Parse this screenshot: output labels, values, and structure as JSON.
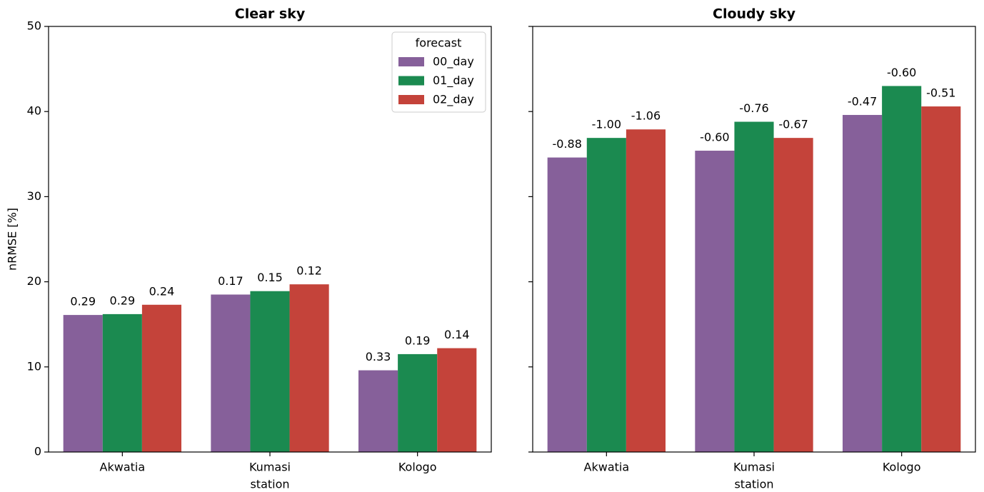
{
  "chart_data": [
    {
      "type": "bar",
      "title": "Clear sky",
      "xlabel": "station",
      "ylabel": "nRMSE [%]",
      "categories": [
        "Akwatia",
        "Kumasi",
        "Kologo"
      ],
      "series": [
        {
          "name": "00_day",
          "color": "#86609a",
          "values": [
            16.1,
            18.5,
            9.6
          ],
          "annotations": [
            "0.29",
            "0.17",
            "0.33"
          ]
        },
        {
          "name": "01_day",
          "color": "#1b8a50",
          "values": [
            16.2,
            18.9,
            11.5
          ],
          "annotations": [
            "0.29",
            "0.15",
            "0.19"
          ]
        },
        {
          "name": "02_day",
          "color": "#c4433a",
          "values": [
            17.3,
            19.7,
            12.2
          ],
          "annotations": [
            "0.24",
            "0.12",
            "0.14"
          ]
        }
      ],
      "ylim": [
        0,
        50
      ],
      "yticks": [
        0,
        10,
        20,
        30,
        40,
        50
      ],
      "show_ytick_labels": true,
      "legend": "upper right",
      "legend_title": "forecast"
    },
    {
      "type": "bar",
      "title": "Cloudy sky",
      "xlabel": "station",
      "categories": [
        "Akwatia",
        "Kumasi",
        "Kologo"
      ],
      "series": [
        {
          "name": "00_day",
          "color": "#86609a",
          "values": [
            34.6,
            35.4,
            39.6
          ],
          "annotations": [
            "-0.88",
            "-0.60",
            "-0.47"
          ]
        },
        {
          "name": "01_day",
          "color": "#1b8a50",
          "values": [
            36.9,
            38.8,
            43.0
          ],
          "annotations": [
            "-1.00",
            "-0.76",
            "-0.60"
          ]
        },
        {
          "name": "02_day",
          "color": "#c4433a",
          "values": [
            37.9,
            36.9,
            40.6
          ],
          "annotations": [
            "-1.06",
            "-0.67",
            "-0.51"
          ]
        }
      ],
      "ylim": [
        0,
        50
      ],
      "yticks": [
        0,
        10,
        20,
        30,
        40,
        50
      ],
      "show_ytick_labels": false
    }
  ]
}
